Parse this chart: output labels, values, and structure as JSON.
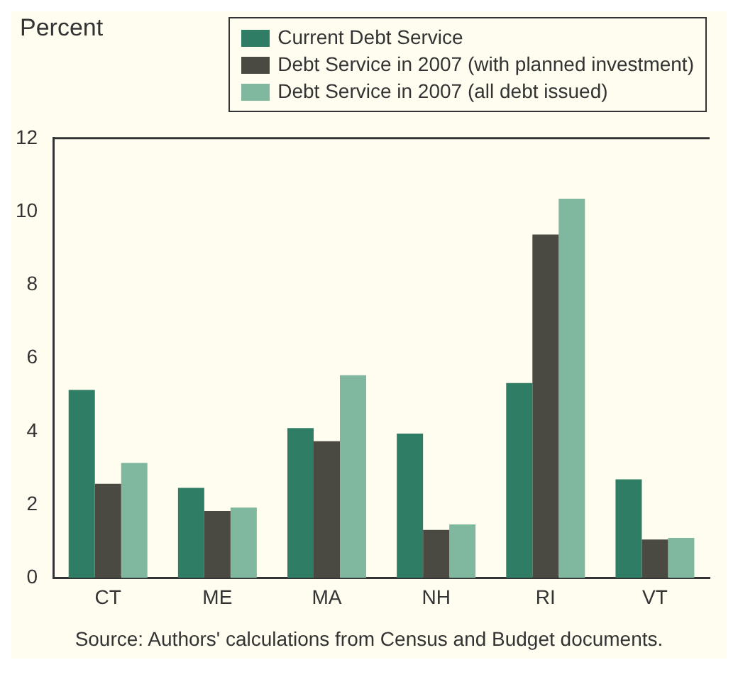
{
  "chart_data": {
    "type": "bar",
    "ylabel": "Percent",
    "categories": [
      "CT",
      "ME",
      "MA",
      "NH",
      "RI",
      "VT"
    ],
    "series": [
      {
        "name": "Current Debt Service",
        "color": "#2e7d64",
        "values": [
          5.13,
          2.46,
          4.09,
          3.94,
          5.32,
          2.69
        ]
      },
      {
        "name": "Debt Service in 2007 (with planned investment)",
        "color": "#4a4a42",
        "values": [
          2.57,
          1.83,
          3.73,
          1.31,
          9.37,
          1.05
        ]
      },
      {
        "name": "Debt Service in 2007 (all debt issued)",
        "color": "#7fb89e",
        "values": [
          3.14,
          1.92,
          5.53,
          1.46,
          10.35,
          1.09
        ]
      }
    ],
    "ylim": [
      0,
      12
    ],
    "yticks": [
      0,
      2,
      4,
      6,
      8,
      10,
      12
    ],
    "grid": false,
    "legend": "top",
    "annotations": [
      "Source: Authors' calculations from Census and Budget documents."
    ]
  }
}
